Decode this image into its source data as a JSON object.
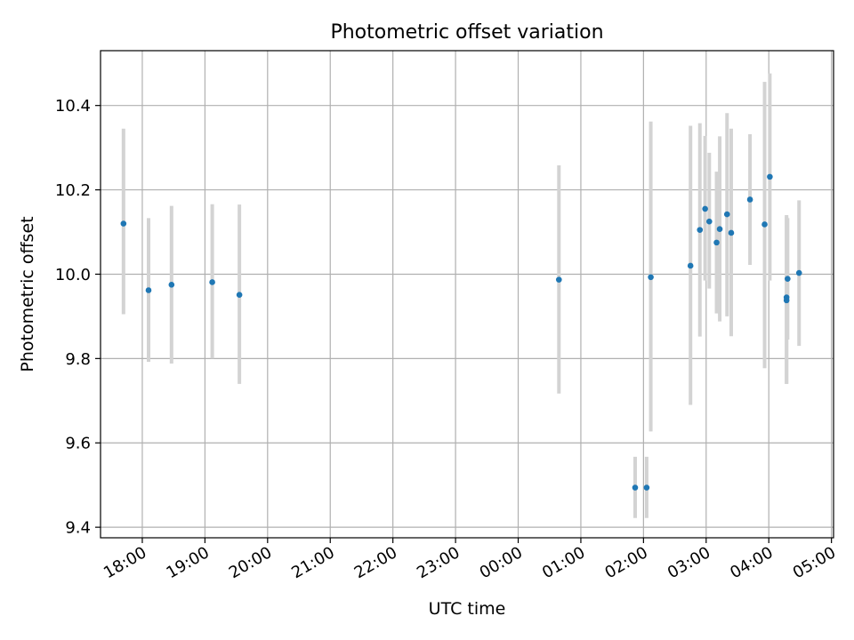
{
  "chart_data": {
    "type": "scatter",
    "title": "Photometric offset variation",
    "xlabel": "UTC time",
    "ylabel": "Photometric offset",
    "x_axis_type": "time",
    "x_ticks": [
      "18:00",
      "19:00",
      "20:00",
      "21:00",
      "22:00",
      "23:00",
      "00:00",
      "01:00",
      "02:00",
      "03:00",
      "04:00",
      "05:00"
    ],
    "y_ticks": [
      "9.4",
      "9.6",
      "9.8",
      "10.0",
      "10.2",
      "10.4"
    ],
    "xlim": [
      "17:20",
      "05:02"
    ],
    "ylim": [
      9.375,
      10.53
    ],
    "grid": true,
    "colors": {
      "point": "#1f77b4",
      "errorbar": "#d3d3d3",
      "grid": "#b0b0b0"
    },
    "points": [
      {
        "t": "17:42",
        "y": 10.12,
        "lo": 9.905,
        "hi": 10.345
      },
      {
        "t": "18:06",
        "y": 9.962,
        "lo": 9.792,
        "hi": 10.133
      },
      {
        "t": "18:28",
        "y": 9.975,
        "lo": 9.788,
        "hi": 10.162
      },
      {
        "t": "19:07",
        "y": 9.981,
        "lo": 9.8,
        "hi": 10.166
      },
      {
        "t": "19:33",
        "y": 9.951,
        "lo": 9.74,
        "hi": 10.165
      },
      {
        "t": "00:39",
        "y": 9.987,
        "lo": 9.717,
        "hi": 10.258
      },
      {
        "t": "01:52",
        "y": 9.494,
        "lo": 9.422,
        "hi": 9.567
      },
      {
        "t": "02:03",
        "y": 9.494,
        "lo": 9.422,
        "hi": 9.567
      },
      {
        "t": "02:07",
        "y": 9.993,
        "lo": 9.627,
        "hi": 10.362
      },
      {
        "t": "02:45",
        "y": 10.02,
        "lo": 9.69,
        "hi": 10.352
      },
      {
        "t": "02:54",
        "y": 10.105,
        "lo": 9.852,
        "hi": 10.358
      },
      {
        "t": "02:59",
        "y": 10.155,
        "lo": 9.985,
        "hi": 10.328
      },
      {
        "t": "03:03",
        "y": 10.125,
        "lo": 9.966,
        "hi": 10.288
      },
      {
        "t": "03:10",
        "y": 10.075,
        "lo": 9.907,
        "hi": 10.243
      },
      {
        "t": "03:13",
        "y": 10.107,
        "lo": 9.888,
        "hi": 10.327
      },
      {
        "t": "03:20",
        "y": 10.142,
        "lo": 9.9,
        "hi": 10.382
      },
      {
        "t": "03:24",
        "y": 10.098,
        "lo": 9.853,
        "hi": 10.345
      },
      {
        "t": "03:42",
        "y": 10.177,
        "lo": 10.022,
        "hi": 10.332
      },
      {
        "t": "03:56",
        "y": 10.118,
        "lo": 9.777,
        "hi": 10.456
      },
      {
        "t": "04:01",
        "y": 10.231,
        "lo": 9.985,
        "hi": 10.476
      },
      {
        "t": "04:17",
        "y": 9.945,
        "lo": 9.74,
        "hi": 10.14
      },
      {
        "t": "04:17",
        "y": 9.938,
        "lo": 9.74,
        "hi": 10.136
      },
      {
        "t": "04:18",
        "y": 9.989,
        "lo": 9.845,
        "hi": 10.133
      },
      {
        "t": "04:29",
        "y": 10.003,
        "lo": 9.83,
        "hi": 10.175
      }
    ]
  }
}
